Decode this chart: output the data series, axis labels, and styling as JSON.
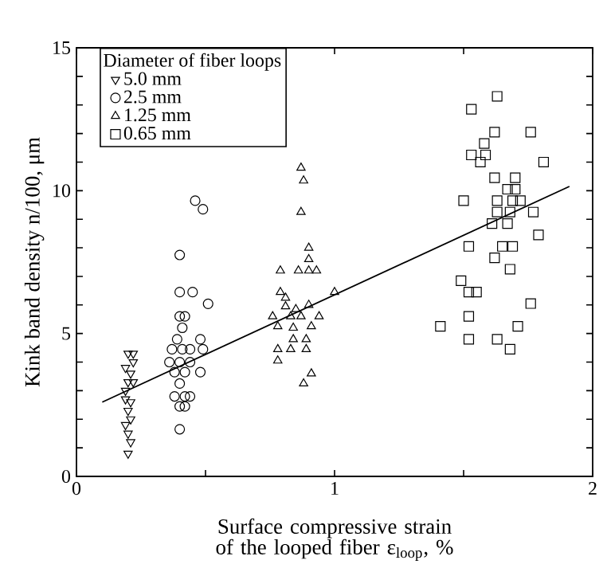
{
  "chart_data": {
    "type": "scatter",
    "xlabel": "Surface compressive strain of the looped fiber ε$_{loop}$, %",
    "ylabel": "Kink band density  n/100, μm",
    "legend_title": "Diameter of fiber loops",
    "legend": "top left",
    "grid": false,
    "xlim": [
      0,
      2
    ],
    "ylim": [
      0,
      15
    ],
    "xticks": [
      0,
      {
        "value": 0.5,
        "label": null
      },
      1,
      {
        "value": 1.5,
        "label": null
      },
      2
    ],
    "yticks": [
      0,
      {
        "value": 1,
        "label": null
      },
      {
        "value": 2,
        "label": null
      },
      {
        "value": 3,
        "label": null
      },
      {
        "value": 4,
        "label": null
      },
      5,
      {
        "value": 6,
        "label": null
      },
      {
        "value": 7,
        "label": null
      },
      {
        "value": 8,
        "label": null
      },
      {
        "value": 9,
        "label": null
      },
      10,
      {
        "value": 11,
        "label": null
      },
      {
        "value": 12,
        "label": null
      },
      {
        "value": 13,
        "label": null
      },
      {
        "value": 14,
        "label": null
      },
      15
    ],
    "series": [
      {
        "name": "5.0 mm",
        "color": "#000000",
        "marker": "triangle down",
        "x": [
          0.2,
          0.22,
          0.19,
          0.21,
          0.2,
          0.22,
          0.19,
          0.21,
          0.2,
          0.21,
          0.19,
          0.2,
          0.21,
          0.2,
          0.22,
          0.19
        ],
        "values": [
          4.3,
          4.3,
          3.8,
          3.6,
          3.3,
          3.3,
          2.7,
          2.6,
          2.3,
          2.0,
          1.8,
          1.5,
          1.2,
          0.8,
          4.0,
          3.0
        ]
      },
      {
        "name": "2.5 mm",
        "color": "#000000",
        "marker": "circle",
        "x": [
          0.46,
          0.49,
          0.4,
          0.4,
          0.45,
          0.51,
          0.4,
          0.42,
          0.41,
          0.39,
          0.48,
          0.37,
          0.41,
          0.44,
          0.49,
          0.36,
          0.4,
          0.44,
          0.38,
          0.42,
          0.48,
          0.4,
          0.38,
          0.42,
          0.44,
          0.4,
          0.42,
          0.4
        ],
        "values": [
          9.65,
          9.35,
          7.75,
          6.45,
          6.45,
          6.04,
          5.6,
          5.6,
          5.2,
          4.8,
          4.8,
          4.45,
          4.45,
          4.45,
          4.45,
          4.0,
          4.0,
          4.0,
          3.65,
          3.65,
          3.65,
          3.25,
          2.8,
          2.8,
          2.8,
          2.45,
          2.45,
          1.65
        ]
      },
      {
        "name": "1.25 mm",
        "color": "#000000",
        "marker": "triangle",
        "x": [
          0.87,
          0.88,
          0.87,
          0.9,
          0.9,
          0.79,
          0.86,
          0.9,
          0.93,
          0.79,
          0.81,
          1.0,
          0.81,
          0.85,
          0.9,
          0.76,
          0.83,
          0.87,
          0.94,
          0.78,
          0.84,
          0.91,
          0.84,
          0.89,
          0.78,
          0.83,
          0.89,
          0.78,
          0.91,
          0.88
        ],
        "values": [
          10.8,
          10.35,
          9.25,
          8.0,
          7.6,
          7.2,
          7.2,
          7.2,
          7.2,
          6.45,
          6.25,
          6.45,
          5.95,
          5.85,
          6.0,
          5.6,
          5.6,
          5.6,
          5.6,
          5.25,
          5.2,
          5.25,
          4.8,
          4.8,
          4.45,
          4.45,
          4.45,
          4.05,
          3.6,
          3.25
        ]
      },
      {
        "name": "0.65 mm",
        "color": "#000000",
        "marker": "square",
        "x": [
          1.63,
          1.53,
          1.62,
          1.76,
          1.58,
          1.53,
          1.585,
          1.565,
          1.81,
          1.62,
          1.7,
          1.67,
          1.7,
          1.5,
          1.63,
          1.69,
          1.72,
          1.63,
          1.68,
          1.77,
          1.61,
          1.67,
          1.79,
          1.52,
          1.65,
          1.69,
          1.62,
          1.68,
          1.49,
          1.52,
          1.55,
          1.76,
          1.52,
          1.41,
          1.71,
          1.52,
          1.63,
          1.68
        ],
        "values": [
          13.3,
          12.85,
          12.05,
          12.05,
          11.65,
          11.25,
          11.25,
          11.0,
          11.0,
          10.45,
          10.45,
          10.05,
          10.05,
          9.65,
          9.65,
          9.65,
          9.65,
          9.25,
          9.25,
          9.25,
          8.85,
          8.85,
          8.45,
          8.05,
          8.05,
          8.05,
          7.65,
          7.25,
          6.85,
          6.45,
          6.45,
          6.05,
          5.6,
          5.25,
          5.25,
          4.8,
          4.8,
          4.45
        ]
      },
      {
        "type": "line",
        "color": "#000000",
        "x": [
          0.1,
          1.91
        ],
        "values": [
          2.6,
          10.15
        ]
      }
    ]
  }
}
